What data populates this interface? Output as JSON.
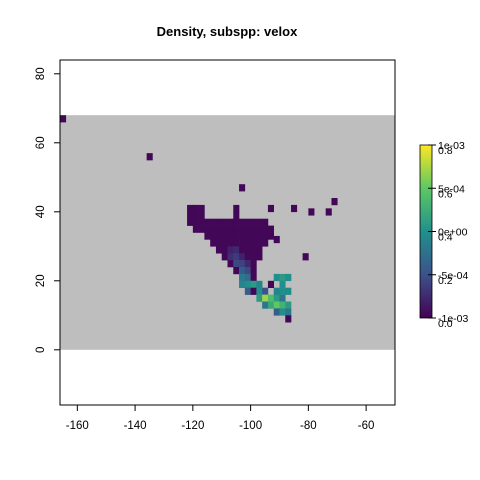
{
  "chart_data": {
    "type": "heatmap",
    "title": "Density, subspp: velox",
    "xlabel": "",
    "ylabel": "",
    "xlim": [
      -166,
      -50
    ],
    "ylim": [
      -16,
      84
    ],
    "x_ticks": [
      -160,
      -140,
      -120,
      -100,
      -80,
      -60
    ],
    "y_ticks": [
      0,
      20,
      40,
      60,
      80
    ],
    "x_tick_labels": [
      "-160",
      "-140",
      "-120",
      "-100",
      "-80",
      "-60"
    ],
    "y_tick_labels": [
      "0",
      "20",
      "40",
      "60",
      "80"
    ],
    "raster_extent": {
      "x": [
        -166,
        -50
      ],
      "y": [
        0,
        68
      ]
    },
    "cell_size": 2,
    "na_color": "#bebebe",
    "palette": [
      "#440154",
      "#3b528b",
      "#21908c",
      "#5dc863",
      "#fde725"
    ],
    "colorbar": {
      "labels_right": [
        "1e-03",
        "5e-04",
        "0e+00",
        "-5e-04",
        "-1e-03"
      ],
      "labels_overlap": [
        "0.8",
        "0.6",
        "0.4",
        "0.2",
        "0.0"
      ]
    },
    "cells": [
      {
        "x": -165,
        "y": 67,
        "v": 0.02
      },
      {
        "x": -135,
        "y": 56,
        "v": 0.02
      },
      {
        "x": -103,
        "y": 47,
        "v": 0.02
      },
      {
        "x": -93,
        "y": 41,
        "v": 0.02
      },
      {
        "x": -85,
        "y": 41,
        "v": 0.02
      },
      {
        "x": -79,
        "y": 40,
        "v": 0.02
      },
      {
        "x": -73,
        "y": 40,
        "v": 0.02
      },
      {
        "x": -71,
        "y": 43,
        "v": 0.02
      },
      {
        "x": -91,
        "y": 32,
        "v": 0.02
      },
      {
        "x": -81,
        "y": 27,
        "v": 0.02
      }
    ],
    "regions": [
      {
        "x": [
          -121,
          -117
        ],
        "y": [
          39,
          41
        ],
        "v": 0.02
      },
      {
        "x": -105,
        "y": [
          39,
          41
        ],
        "v": 0.02
      },
      {
        "x": [
          -121,
          -95
        ],
        "y": [
          37,
          37
        ],
        "v": 0.02
      },
      {
        "x": [
          -119,
          -93
        ],
        "y": [
          35,
          35
        ],
        "v": 0.02
      },
      {
        "x": [
          -115,
          -93
        ],
        "y": [
          33,
          33
        ],
        "v": 0.02
      },
      {
        "x": [
          -113,
          -95
        ],
        "y": [
          31,
          31
        ],
        "v": 0.02
      },
      {
        "x": [
          -111,
          -97
        ],
        "y": [
          29,
          29
        ],
        "v": 0.02
      },
      {
        "x": [
          -109,
          -97
        ],
        "y": [
          27,
          27
        ],
        "v": 0.02
      },
      {
        "x": [
          -107,
          -99
        ],
        "y": [
          25,
          25
        ],
        "v": 0.02
      },
      {
        "x": [
          -105,
          -99
        ],
        "y": [
          23,
          23
        ],
        "v": 0.02
      },
      {
        "x": [
          -103,
          -99
        ],
        "y": [
          21,
          21
        ],
        "v": 0.02
      },
      {
        "x": [
          -101,
          -97
        ],
        "y": [
          19,
          19
        ],
        "v": 0.02
      }
    ],
    "hotspots": [
      {
        "x": -107,
        "y": 29,
        "v": 0.1
      },
      {
        "x": -105,
        "y": 29,
        "v": 0.12
      },
      {
        "x": -107,
        "y": 27,
        "v": 0.14
      },
      {
        "x": -105,
        "y": 27,
        "v": 0.18
      },
      {
        "x": -103,
        "y": 27,
        "v": 0.1
      },
      {
        "x": -105,
        "y": 25,
        "v": 0.22
      },
      {
        "x": -103,
        "y": 25,
        "v": 0.2
      },
      {
        "x": -101,
        "y": 25,
        "v": 0.12
      },
      {
        "x": -103,
        "y": 23,
        "v": 0.28
      },
      {
        "x": -101,
        "y": 23,
        "v": 0.22
      },
      {
        "x": -103,
        "y": 21,
        "v": 0.4
      },
      {
        "x": -101,
        "y": 21,
        "v": 0.36
      },
      {
        "x": -103,
        "y": 19,
        "v": 0.45
      },
      {
        "x": -101,
        "y": 19,
        "v": 0.5
      },
      {
        "x": -99,
        "y": 19,
        "v": 0.55
      },
      {
        "x": -97,
        "y": 19,
        "v": 0.45
      },
      {
        "x": -101,
        "y": 17,
        "v": 0.3
      },
      {
        "x": -99,
        "y": 17,
        "v": 0.02
      },
      {
        "x": -97,
        "y": 17,
        "v": 0.5
      },
      {
        "x": -95,
        "y": 17,
        "v": 0.25
      },
      {
        "x": -97,
        "y": 15,
        "v": 0.55
      },
      {
        "x": -95,
        "y": 15,
        "v": 0.85
      },
      {
        "x": -93,
        "y": 15,
        "v": 0.7
      },
      {
        "x": -91,
        "y": 15,
        "v": 0.55
      },
      {
        "x": -89,
        "y": 15,
        "v": 0.4
      },
      {
        "x": -95,
        "y": 13,
        "v": 0.4
      },
      {
        "x": -93,
        "y": 13,
        "v": 0.6
      },
      {
        "x": -91,
        "y": 13,
        "v": 0.75
      },
      {
        "x": -89,
        "y": 13,
        "v": 0.65
      },
      {
        "x": -87,
        "y": 13,
        "v": 0.55
      },
      {
        "x": -91,
        "y": 11,
        "v": 0.3
      },
      {
        "x": -89,
        "y": 11,
        "v": 0.5
      },
      {
        "x": -87,
        "y": 11,
        "v": 0.4
      },
      {
        "x": -87,
        "y": 9,
        "v": 0.02
      },
      {
        "x": -91,
        "y": 17,
        "v": 0.45
      },
      {
        "x": -89,
        "y": 17,
        "v": 0.5
      },
      {
        "x": -87,
        "y": 17,
        "v": 0.48
      },
      {
        "x": -91,
        "y": 21,
        "v": 0.5
      },
      {
        "x": -89,
        "y": 21,
        "v": 0.55
      },
      {
        "x": -87,
        "y": 21,
        "v": 0.5
      },
      {
        "x": -93,
        "y": 19,
        "v": 0.02
      },
      {
        "x": -89,
        "y": 19,
        "v": 0.5
      }
    ]
  }
}
